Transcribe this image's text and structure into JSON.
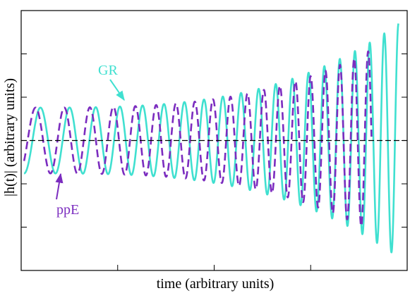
{
  "chart_data": {
    "type": "line",
    "xlabel": "time (arbitrary units)",
    "ylabel": "|h(t)| (arbitrary units)",
    "xlim": [
      0,
      40
    ],
    "ylim": [
      -1.5,
      1.5
    ],
    "grid": false,
    "legend": "none",
    "tick_labels_shown": false,
    "reference_line": {
      "y": 0,
      "style": "dashed",
      "color": "#000000"
    },
    "series": [
      {
        "name": "GR",
        "color": "#40E0D0",
        "style": "solid",
        "waveform": "chirp",
        "t_start": 0.3,
        "t_end": 39.1,
        "amplitude_start": 0.38,
        "amplitude_end": 1.35,
        "cycles": 19.5
      },
      {
        "name": "ppE",
        "color": "#7B2CBF",
        "style": "dashed",
        "waveform": "chirp",
        "t_start": 0.3,
        "t_end": 36.3,
        "amplitude_start": 0.38,
        "amplitude_end": 1.05,
        "cycles": 18.6
      }
    ],
    "annotations": [
      {
        "text": "GR",
        "color": "#40E0D0",
        "points_to": "GR"
      },
      {
        "text": "ppE",
        "color": "#7B2CBF",
        "points_to": "ppE"
      }
    ]
  }
}
